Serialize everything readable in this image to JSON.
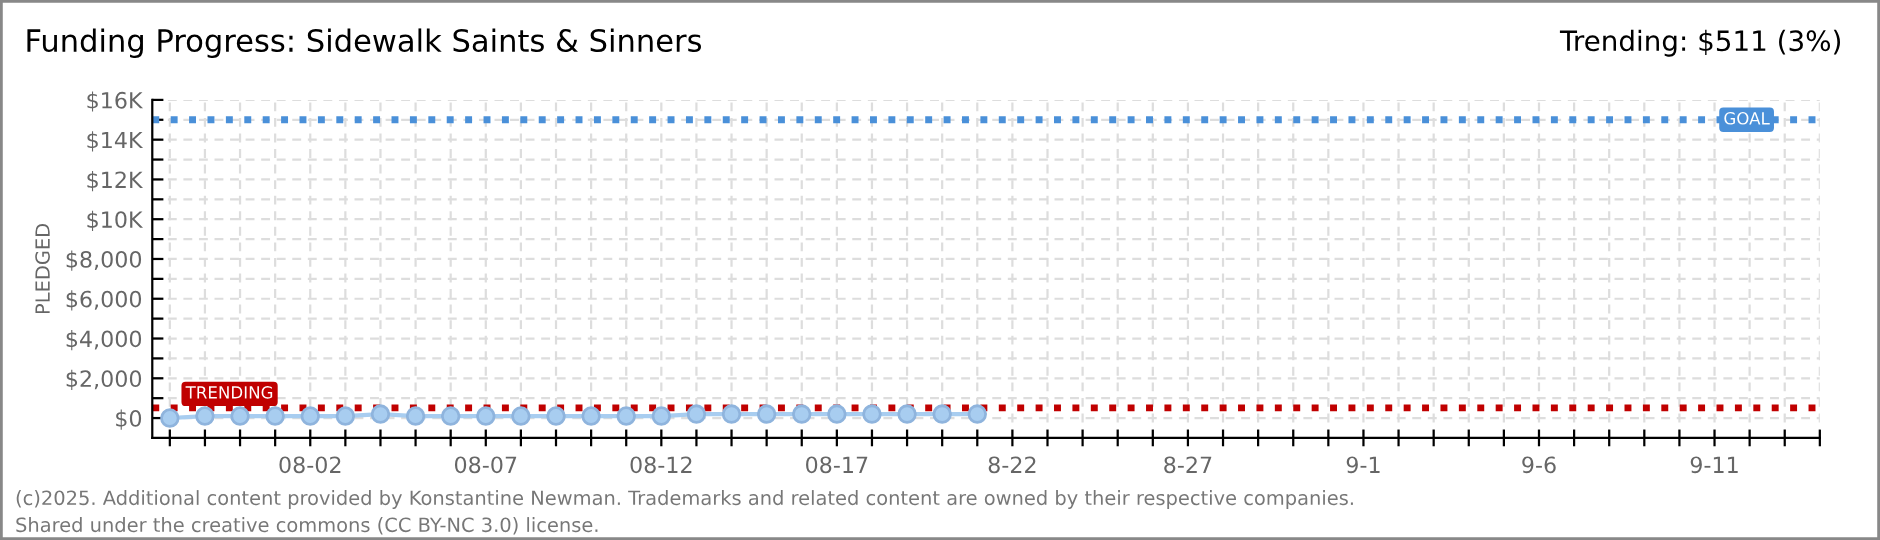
{
  "chart_data": {
    "type": "line",
    "title": "Funding Progress: Sidewalk Saints & Sinners",
    "ylabel": "PLEDGED",
    "annotations": [
      "Trending: $511 (3%)",
      "(c)2025. Additional content provided by Konstantine Newman. Trademarks and related content are owned by their respective companies.",
      "Shared under the creative commons (CC BY-NC 3.0) license."
    ],
    "x": [
      "2025-07-29",
      "2025-07-30",
      "2025-07-31",
      "2025-08-01",
      "2025-08-02",
      "2025-08-03",
      "2025-08-04",
      "2025-08-05",
      "2025-08-06",
      "2025-08-07",
      "2025-08-08",
      "2025-08-09",
      "2025-08-10",
      "2025-08-11",
      "2025-08-12",
      "2025-08-13",
      "2025-08-14",
      "2025-08-15",
      "2025-08-16",
      "2025-08-17",
      "2025-08-18",
      "2025-08-19",
      "2025-08-20",
      "2025-08-21"
    ],
    "series": [
      {
        "color": "#a8cdf0",
        "values": [
          0,
          100,
          100,
          100,
          100,
          100,
          200,
          100,
          100,
          100,
          100,
          100,
          100,
          100,
          100,
          200,
          200,
          200,
          200,
          200,
          200,
          200,
          200,
          200
        ]
      }
    ],
    "marker": "circle",
    "ylim": [
      -1000,
      16000
    ],
    "yticks": [
      {
        "value": 0,
        "label": "$0"
      },
      {
        "value": 1000,
        "label": null
      },
      {
        "value": 2000,
        "label": "$2,000"
      },
      {
        "value": 3000,
        "label": null
      },
      {
        "value": 4000,
        "label": "$4,000"
      },
      {
        "value": 5000,
        "label": null
      },
      {
        "value": 6000,
        "label": "$6,000"
      },
      {
        "value": 7000,
        "label": null
      },
      {
        "value": 8000,
        "label": "$8,000"
      },
      {
        "value": 9000,
        "label": null
      },
      {
        "value": 10000,
        "label": "$10K"
      },
      {
        "value": 11000,
        "label": null
      },
      {
        "value": 12000,
        "label": "$12K"
      },
      {
        "value": 13000,
        "label": null
      },
      {
        "value": 14000,
        "label": "$14K"
      },
      {
        "value": 15000,
        "label": null
      },
      {
        "value": 16000,
        "label": "$16K"
      }
    ],
    "xlim": [
      "2025-07-28T12:00",
      "2025-09-14"
    ],
    "xticks": [
      {
        "value": "2025-07-29",
        "label": null
      },
      {
        "value": "2025-07-30",
        "label": null
      },
      {
        "value": "2025-07-31",
        "label": null
      },
      {
        "value": "2025-08-01",
        "label": null
      },
      {
        "value": "2025-08-02",
        "label": "08-02"
      },
      {
        "value": "2025-08-03",
        "label": null
      },
      {
        "value": "2025-08-04",
        "label": null
      },
      {
        "value": "2025-08-05",
        "label": null
      },
      {
        "value": "2025-08-06",
        "label": null
      },
      {
        "value": "2025-08-07",
        "label": "08-07"
      },
      {
        "value": "2025-08-08",
        "label": null
      },
      {
        "value": "2025-08-09",
        "label": null
      },
      {
        "value": "2025-08-10",
        "label": null
      },
      {
        "value": "2025-08-11",
        "label": null
      },
      {
        "value": "2025-08-12",
        "label": "08-12"
      },
      {
        "value": "2025-08-13",
        "label": null
      },
      {
        "value": "2025-08-14",
        "label": null
      },
      {
        "value": "2025-08-15",
        "label": null
      },
      {
        "value": "2025-08-16",
        "label": null
      },
      {
        "value": "2025-08-17",
        "label": "08-17"
      },
      {
        "value": "2025-08-18",
        "label": null
      },
      {
        "value": "2025-08-19",
        "label": null
      },
      {
        "value": "2025-08-20",
        "label": null
      },
      {
        "value": "2025-08-21",
        "label": null
      },
      {
        "value": "2025-08-22",
        "label": "8-22"
      },
      {
        "value": "2025-08-23",
        "label": null
      },
      {
        "value": "2025-08-24",
        "label": null
      },
      {
        "value": "2025-08-25",
        "label": null
      },
      {
        "value": "2025-08-26",
        "label": null
      },
      {
        "value": "2025-08-27",
        "label": "8-27"
      },
      {
        "value": "2025-08-28",
        "label": null
      },
      {
        "value": "2025-08-29",
        "label": null
      },
      {
        "value": "2025-08-30",
        "label": null
      },
      {
        "value": "2025-08-31",
        "label": null
      },
      {
        "value": "2025-09-01",
        "label": "9-1"
      },
      {
        "value": "2025-09-02",
        "label": null
      },
      {
        "value": "2025-09-03",
        "label": null
      },
      {
        "value": "2025-09-04",
        "label": null
      },
      {
        "value": "2025-09-05",
        "label": null
      },
      {
        "value": "2025-09-06",
        "label": "9-6"
      },
      {
        "value": "2025-09-07",
        "label": null
      },
      {
        "value": "2025-09-08",
        "label": null
      },
      {
        "value": "2025-09-09",
        "label": null
      },
      {
        "value": "2025-09-10",
        "label": null
      },
      {
        "value": "2025-09-11",
        "label": "9-11"
      },
      {
        "value": "2025-09-12",
        "label": null
      },
      {
        "value": "2025-09-13",
        "label": null
      },
      {
        "value": "2025-09-14",
        "label": null
      }
    ],
    "grid": true,
    "legend": false,
    "ref_lines": [
      {
        "axis": "y",
        "value": 15000,
        "label": "GOAL",
        "color": "#4a90d9",
        "line_style": "dotted"
      },
      {
        "axis": "y",
        "value": 511,
        "label": "TRENDING",
        "color": "#c00000",
        "line_style": "dotted"
      }
    ]
  }
}
